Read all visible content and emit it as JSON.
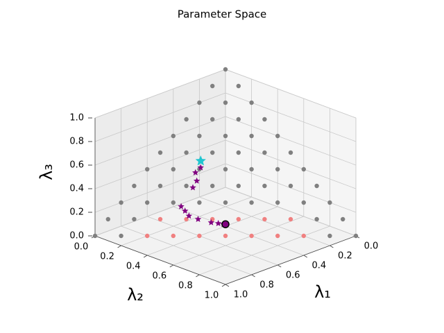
{
  "chart_data": {
    "type": "scatter3d",
    "title": "Parameter Space",
    "xlabel": "λ₁",
    "ylabel": "λ₂",
    "zlabel": "λ₃",
    "xlim": [
      0,
      1
    ],
    "ylim": [
      0,
      1
    ],
    "zlim": [
      0,
      1
    ],
    "xticks": [
      {
        "value": 0,
        "label": "0.0"
      },
      {
        "value": 0.2,
        "label": "0.2"
      },
      {
        "value": 0.4,
        "label": "0.4"
      },
      {
        "value": 0.6,
        "label": "0.6"
      },
      {
        "value": 0.8,
        "label": "0.8"
      },
      {
        "value": 1,
        "label": "1.0"
      }
    ],
    "yticks": [
      {
        "value": 0,
        "label": "0.0"
      },
      {
        "value": 0.2,
        "label": "0.2"
      },
      {
        "value": 0.4,
        "label": "0.4"
      },
      {
        "value": 0.6,
        "label": "0.6"
      },
      {
        "value": 0.8,
        "label": "0.8"
      },
      {
        "value": 1,
        "label": "1.0"
      }
    ],
    "zticks": [
      {
        "value": 0,
        "label": "0.0"
      },
      {
        "value": 0.2,
        "label": "0.2"
      },
      {
        "value": 0.4,
        "label": "0.4"
      },
      {
        "value": 0.6,
        "label": "0.6"
      },
      {
        "value": 0.8,
        "label": "0.8"
      },
      {
        "value": 1,
        "label": "1.0"
      }
    ],
    "grid": true,
    "series": [
      {
        "color": "#808080",
        "marker": "circle",
        "points": [
          [
            0,
            0,
            1
          ],
          [
            0.1,
            0,
            0.9
          ],
          [
            0.2,
            0,
            0.8
          ],
          [
            0.3,
            0,
            0.7
          ],
          [
            0.4,
            0,
            0.6
          ],
          [
            0.5,
            0,
            0.5
          ],
          [
            0.6,
            0,
            0.4
          ],
          [
            0.7,
            0,
            0.3
          ],
          [
            0.8,
            0,
            0.2
          ],
          [
            0.9,
            0,
            0.1
          ],
          [
            1,
            0,
            0
          ],
          [
            0,
            0.1,
            0.9
          ],
          [
            0.1,
            0.1,
            0.8
          ],
          [
            0.2,
            0.1,
            0.7
          ],
          [
            0.3,
            0.1,
            0.6
          ],
          [
            0.4,
            0.1,
            0.5
          ],
          [
            0.5,
            0.1,
            0.4
          ],
          [
            0.6,
            0.1,
            0.3
          ],
          [
            0.7,
            0.1,
            0.2
          ],
          [
            0.8,
            0.1,
            0.1
          ],
          [
            0.9,
            0.1,
            0
          ],
          [
            0,
            0.2,
            0.8
          ],
          [
            0.1,
            0.2,
            0.7
          ],
          [
            0.2,
            0.2,
            0.6
          ],
          [
            0.3,
            0.2,
            0.5
          ],
          [
            0.4,
            0.2,
            0.4
          ],
          [
            0.5,
            0.2,
            0.3
          ],
          [
            0.6,
            0.2,
            0.2
          ],
          [
            0,
            0.3,
            0.7
          ],
          [
            0.1,
            0.3,
            0.6
          ],
          [
            0.2,
            0.3,
            0.5
          ],
          [
            0.3,
            0.3,
            0.4
          ],
          [
            0.4,
            0.3,
            0.3
          ],
          [
            0.5,
            0.3,
            0.2
          ],
          [
            0,
            0.4,
            0.6
          ],
          [
            0.1,
            0.4,
            0.5
          ],
          [
            0.2,
            0.4,
            0.4
          ],
          [
            0.3,
            0.4,
            0.3
          ],
          [
            0.4,
            0.4,
            0.2
          ],
          [
            0,
            0.5,
            0.5
          ],
          [
            0.1,
            0.5,
            0.4
          ],
          [
            0.2,
            0.5,
            0.3
          ],
          [
            0.3,
            0.5,
            0.2
          ],
          [
            0,
            0.6,
            0.4
          ],
          [
            0.1,
            0.6,
            0.3
          ],
          [
            0.2,
            0.6,
            0.2
          ],
          [
            0,
            0.7,
            0.3
          ],
          [
            0.1,
            0.7,
            0.2
          ],
          [
            0,
            0.8,
            0.2
          ],
          [
            0.1,
            0.8,
            0.1
          ],
          [
            0,
            0.9,
            0.1
          ],
          [
            0.1,
            0.9,
            0
          ],
          [
            0,
            1,
            0
          ]
        ]
      },
      {
        "color": "#f08080",
        "marker": "circle",
        "points": [
          [
            0.2,
            0.7,
            0.1
          ],
          [
            0.3,
            0.6,
            0.1
          ],
          [
            0.4,
            0.5,
            0.1
          ],
          [
            0.5,
            0.4,
            0.1
          ],
          [
            0.6,
            0.3,
            0.1
          ],
          [
            0.7,
            0.2,
            0.1
          ],
          [
            0.2,
            0.8,
            0
          ],
          [
            0.3,
            0.7,
            0
          ],
          [
            0.4,
            0.6,
            0
          ],
          [
            0.5,
            0.5,
            0
          ],
          [
            0.6,
            0.4,
            0
          ],
          [
            0.7,
            0.3,
            0
          ],
          [
            0.8,
            0.2,
            0
          ]
        ]
      },
      {
        "color": "#800080",
        "marker": "star",
        "points": [
          [
            0.39,
            0.2,
            0.41
          ],
          [
            0.425,
            0.195,
            0.38
          ],
          [
            0.445,
            0.225,
            0.33
          ],
          [
            0.48,
            0.23,
            0.29
          ],
          [
            0.58,
            0.24,
            0.175
          ],
          [
            0.58,
            0.27,
            0.15
          ],
          [
            0.58,
            0.3,
            0.12
          ],
          [
            0.555,
            0.345,
            0.1
          ],
          [
            0.515,
            0.405,
            0.08
          ],
          [
            0.49,
            0.435,
            0.075
          ],
          [
            0.473,
            0.457,
            0.07
          ]
        ]
      },
      {
        "color": "#20c5d0",
        "marker": "bigstar",
        "points": [
          [
            0.37,
            0.18,
            0.45
          ]
        ]
      },
      {
        "color": "#800080",
        "marker": "ring",
        "points": [
          [
            0.465,
            0.465,
            0.07
          ]
        ]
      }
    ]
  }
}
